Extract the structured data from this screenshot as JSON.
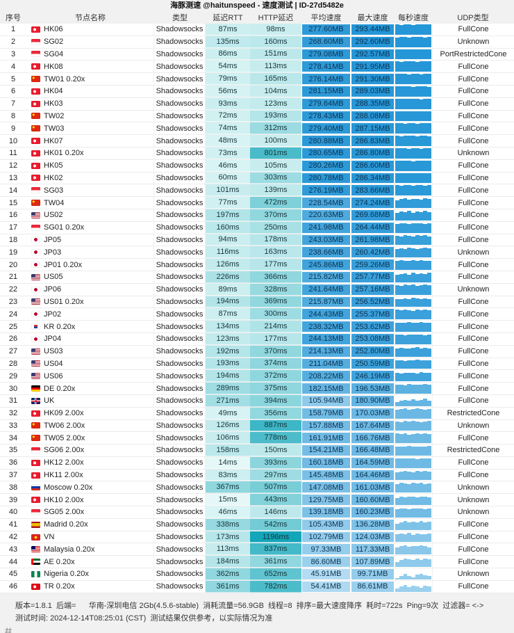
{
  "title": "海豚测速 @haitunspeed - 速度测试 | ID-27d5482e",
  "columns": [
    "序号",
    "节点名称",
    "类型",
    "延迟RTT",
    "HTTP延迟",
    "平均速度",
    "最大速度",
    "每秒速度",
    "UDP类型"
  ],
  "rows": [
    {
      "idx": "1",
      "flag": "hk",
      "name": "HK06",
      "type": "Shadowsocks",
      "rtt": "87ms",
      "http": "98ms",
      "avg": "277.60MB",
      "max": "293.44MB",
      "udp": "FullCone",
      "bars": [
        1,
        0.96,
        1,
        1,
        0.93,
        1,
        1,
        0.97,
        1
      ]
    },
    {
      "idx": "2",
      "flag": "sg",
      "name": "SG02",
      "type": "Shadowsocks",
      "rtt": "135ms",
      "http": "160ms",
      "avg": "268.60MB",
      "max": "292.60MB",
      "udp": "Unknown",
      "bars": [
        0.9,
        1,
        1,
        0.95,
        1,
        1,
        1,
        0.94,
        1
      ]
    },
    {
      "idx": "3",
      "flag": "sg",
      "name": "SG04",
      "type": "Shadowsocks",
      "rtt": "86ms",
      "http": "151ms",
      "avg": "279.08MB",
      "max": "292.57MB",
      "udp": "PortRestrictedCone",
      "bars": [
        1,
        1,
        0.94,
        1,
        1,
        0.96,
        1,
        1,
        0.95
      ]
    },
    {
      "idx": "4",
      "flag": "hk",
      "name": "HK08",
      "type": "Shadowsocks",
      "rtt": "54ms",
      "http": "113ms",
      "avg": "278.41MB",
      "max": "291.95MB",
      "udp": "FullCone",
      "bars": [
        1,
        0.95,
        1,
        1,
        1,
        0.93,
        1,
        1,
        1
      ]
    },
    {
      "idx": "5",
      "flag": "cn",
      "name": "TW01 0.20x",
      "type": "Shadowsocks",
      "rtt": "79ms",
      "http": "165ms",
      "avg": "276.14MB",
      "max": "291.30MB",
      "udp": "FullCone",
      "bars": [
        1,
        1,
        1,
        0.92,
        1,
        1,
        0.95,
        1,
        1
      ]
    },
    {
      "idx": "6",
      "flag": "hk",
      "name": "HK04",
      "type": "Shadowsocks",
      "rtt": "56ms",
      "http": "104ms",
      "avg": "281.15MB",
      "max": "289.03MB",
      "udp": "FullCone",
      "bars": [
        1,
        0.97,
        1,
        1,
        0.95,
        1,
        1,
        1,
        0.96
      ]
    },
    {
      "idx": "7",
      "flag": "hk",
      "name": "HK03",
      "type": "Shadowsocks",
      "rtt": "93ms",
      "http": "123ms",
      "avg": "279.64MB",
      "max": "288.35MB",
      "udp": "FullCone",
      "bars": [
        1,
        1,
        0.96,
        1,
        1,
        1,
        0.94,
        1,
        1
      ]
    },
    {
      "idx": "8",
      "flag": "cn",
      "name": "TW02",
      "type": "Shadowsocks",
      "rtt": "72ms",
      "http": "193ms",
      "avg": "278.43MB",
      "max": "288.08MB",
      "udp": "FullCone",
      "bars": [
        0.95,
        1,
        1,
        1,
        0.96,
        1,
        1,
        0.97,
        1
      ]
    },
    {
      "idx": "9",
      "flag": "cn",
      "name": "TW03",
      "type": "Shadowsocks",
      "rtt": "74ms",
      "http": "312ms",
      "avg": "279.40MB",
      "max": "287.15MB",
      "udp": "FullCone",
      "bars": [
        1,
        1,
        0.95,
        1,
        1,
        0.97,
        1,
        1,
        1
      ]
    },
    {
      "idx": "10",
      "flag": "hk",
      "name": "HK07",
      "type": "Shadowsocks",
      "rtt": "48ms",
      "http": "100ms",
      "avg": "280.88MB",
      "max": "286.83MB",
      "udp": "FullCone",
      "bars": [
        1,
        0.96,
        1,
        1,
        1,
        0.95,
        1,
        1,
        0.97
      ]
    },
    {
      "idx": "11",
      "flag": "hk",
      "name": "HK01 0.20x",
      "type": "Shadowsocks",
      "rtt": "73ms",
      "http": "801ms",
      "avg": "280.65MB",
      "max": "286.80MB",
      "udp": "Unknown",
      "bars": [
        1,
        1,
        1,
        0.94,
        1,
        1,
        0.96,
        1,
        1
      ]
    },
    {
      "idx": "12",
      "flag": "hk",
      "name": "HK05",
      "type": "Shadowsocks",
      "rtt": "46ms",
      "http": "105ms",
      "avg": "280.26MB",
      "max": "286.60MB",
      "udp": "FullCone",
      "bars": [
        0.97,
        1,
        1,
        1,
        0.95,
        1,
        1,
        1,
        0.96
      ]
    },
    {
      "idx": "13",
      "flag": "hk",
      "name": "HK02",
      "type": "Shadowsocks",
      "rtt": "60ms",
      "http": "303ms",
      "avg": "280.78MB",
      "max": "286.34MB",
      "udp": "FullCone",
      "bars": [
        1,
        1,
        0.96,
        1,
        1,
        1,
        0.95,
        1,
        1
      ]
    },
    {
      "idx": "14",
      "flag": "sg",
      "name": "SG03",
      "type": "Shadowsocks",
      "rtt": "101ms",
      "http": "139ms",
      "avg": "276.19MB",
      "max": "283.66MB",
      "udp": "FullCone",
      "bars": [
        1,
        0.95,
        1,
        1,
        0.97,
        1,
        1,
        0.96,
        1
      ]
    },
    {
      "idx": "15",
      "flag": "cn",
      "name": "TW04",
      "type": "Shadowsocks",
      "rtt": "77ms",
      "http": "472ms",
      "avg": "228.54MB",
      "max": "274.24MB",
      "udp": "FullCone",
      "bars": [
        0.75,
        0.85,
        0.95,
        0.8,
        0.9,
        0.85,
        0.8,
        0.95,
        0.85
      ]
    },
    {
      "idx": "16",
      "flag": "us",
      "name": "US02",
      "type": "Shadowsocks",
      "rtt": "197ms",
      "http": "370ms",
      "avg": "220.63MB",
      "max": "269.68MB",
      "udp": "FullCone",
      "bars": [
        0.7,
        0.85,
        0.8,
        0.9,
        0.75,
        0.85,
        0.8,
        0.9,
        0.8
      ]
    },
    {
      "idx": "17",
      "flag": "sg",
      "name": "SG01 0.20x",
      "type": "Shadowsocks",
      "rtt": "160ms",
      "http": "250ms",
      "avg": "241.98MB",
      "max": "264.44MB",
      "udp": "FullCone",
      "bars": [
        0.85,
        0.9,
        0.95,
        0.85,
        0.9,
        0.95,
        0.9,
        0.85,
        0.9
      ]
    },
    {
      "idx": "18",
      "flag": "jp",
      "name": "JP05",
      "type": "Shadowsocks",
      "rtt": "94ms",
      "http": "178ms",
      "avg": "243.03MB",
      "max": "261.98MB",
      "udp": "FullCone",
      "bars": [
        0.9,
        0.85,
        0.95,
        0.9,
        0.85,
        0.95,
        0.9,
        0.95,
        0.85
      ]
    },
    {
      "idx": "19",
      "flag": "jp",
      "name": "JP03",
      "type": "Shadowsocks",
      "rtt": "116ms",
      "http": "163ms",
      "avg": "238.66MB",
      "max": "260.42MB",
      "udp": "Unknown",
      "bars": [
        0.85,
        0.9,
        0.85,
        0.95,
        0.9,
        0.85,
        0.9,
        0.95,
        0.9
      ]
    },
    {
      "idx": "20",
      "flag": "jp",
      "name": "JP01 0.20x",
      "type": "Shadowsocks",
      "rtt": "126ms",
      "http": "177ms",
      "avg": "245.86MB",
      "max": "259.26MB",
      "udp": "FullCone",
      "bars": [
        0.9,
        0.95,
        0.9,
        0.85,
        0.95,
        0.9,
        0.95,
        0.9,
        0.85
      ]
    },
    {
      "idx": "21",
      "flag": "us",
      "name": "US05",
      "type": "Shadowsocks",
      "rtt": "226ms",
      "http": "366ms",
      "avg": "215.82MB",
      "max": "257.77MB",
      "udp": "FullCone",
      "bars": [
        0.75,
        0.8,
        0.85,
        0.75,
        0.9,
        0.8,
        0.85,
        0.8,
        0.9
      ]
    },
    {
      "idx": "22",
      "flag": "jp",
      "name": "JP06",
      "type": "Shadowsocks",
      "rtt": "89ms",
      "http": "328ms",
      "avg": "241.64MB",
      "max": "257.16MB",
      "udp": "Unknown",
      "bars": [
        0.9,
        0.85,
        0.95,
        0.9,
        0.95,
        0.85,
        0.9,
        0.95,
        0.9
      ]
    },
    {
      "idx": "23",
      "flag": "us",
      "name": "US01 0.20x",
      "type": "Shadowsocks",
      "rtt": "194ms",
      "http": "369ms",
      "avg": "215.87MB",
      "max": "256.52MB",
      "udp": "FullCone",
      "bars": [
        0.8,
        0.75,
        0.85,
        0.8,
        0.9,
        0.85,
        0.8,
        0.85,
        0.75
      ]
    },
    {
      "idx": "24",
      "flag": "jp",
      "name": "JP02",
      "type": "Shadowsocks",
      "rtt": "87ms",
      "http": "300ms",
      "avg": "244.43MB",
      "max": "255.37MB",
      "udp": "FullCone",
      "bars": [
        0.95,
        0.9,
        0.95,
        0.9,
        0.85,
        0.95,
        0.9,
        0.95,
        0.9
      ]
    },
    {
      "idx": "25",
      "flag": "kr",
      "name": "KR 0.20x",
      "type": "Shadowsocks",
      "rtt": "134ms",
      "http": "214ms",
      "avg": "238.32MB",
      "max": "253.62MB",
      "udp": "FullCone",
      "bars": [
        0.9,
        0.85,
        0.9,
        0.95,
        0.9,
        0.85,
        0.95,
        0.9,
        0.85
      ]
    },
    {
      "idx": "26",
      "flag": "jp",
      "name": "JP04",
      "type": "Shadowsocks",
      "rtt": "123ms",
      "http": "177ms",
      "avg": "244.13MB",
      "max": "253.08MB",
      "udp": "FullCone",
      "bars": [
        0.95,
        0.9,
        0.85,
        0.95,
        0.9,
        0.95,
        0.9,
        0.85,
        0.95
      ]
    },
    {
      "idx": "27",
      "flag": "us",
      "name": "US03",
      "type": "Shadowsocks",
      "rtt": "192ms",
      "http": "370ms",
      "avg": "214.13MB",
      "max": "252.80MB",
      "udp": "FullCone",
      "bars": [
        0.8,
        0.85,
        0.8,
        0.75,
        0.85,
        0.9,
        0.8,
        0.85,
        0.8
      ]
    },
    {
      "idx": "28",
      "flag": "us",
      "name": "US04",
      "type": "Shadowsocks",
      "rtt": "193ms",
      "http": "374ms",
      "avg": "211.04MB",
      "max": "250.59MB",
      "udp": "FullCone",
      "bars": [
        0.8,
        0.85,
        0.75,
        0.85,
        0.8,
        0.9,
        0.85,
        0.8,
        0.85
      ]
    },
    {
      "idx": "29",
      "flag": "us",
      "name": "US06",
      "type": "Shadowsocks",
      "rtt": "194ms",
      "http": "372ms",
      "avg": "208.22MB",
      "max": "246.19MB",
      "udp": "FullCone",
      "bars": [
        0.8,
        0.75,
        0.85,
        0.8,
        0.85,
        0.75,
        0.9,
        0.8,
        0.85
      ]
    },
    {
      "idx": "30",
      "flag": "de",
      "name": "DE 0.20x",
      "type": "Shadowsocks",
      "rtt": "289ms",
      "http": "375ms",
      "avg": "182.15MB",
      "max": "196.53MB",
      "udp": "FullCone",
      "bars": [
        0.85,
        0.9,
        0.8,
        0.95,
        0.85,
        0.9,
        0.85,
        0.95,
        0.9
      ]
    },
    {
      "idx": "31",
      "flag": "gb",
      "name": "UK",
      "type": "Shadowsocks",
      "rtt": "271ms",
      "http": "394ms",
      "avg": "105.94MB",
      "max": "180.90MB",
      "udp": "FullCone",
      "bars": [
        0.4,
        0.55,
        0.6,
        0.5,
        0.65,
        0.55,
        0.6,
        0.7,
        0.55
      ]
    },
    {
      "idx": "32",
      "flag": "hk",
      "name": "HK09 2.00x",
      "type": "Shadowsocks",
      "rtt": "49ms",
      "http": "356ms",
      "avg": "158.79MB",
      "max": "170.03MB",
      "udp": "RestrictedCone",
      "bars": [
        0.85,
        0.9,
        0.95,
        0.85,
        0.9,
        0.95,
        0.9,
        0.85,
        0.9
      ]
    },
    {
      "idx": "33",
      "flag": "cn",
      "name": "TW06 2.00x",
      "type": "Shadowsocks",
      "rtt": "126ms",
      "http": "887ms",
      "avg": "157.88MB",
      "max": "167.64MB",
      "udp": "Unknown",
      "bars": [
        0.9,
        0.85,
        0.95,
        0.9,
        0.95,
        0.9,
        0.85,
        0.9,
        0.95
      ]
    },
    {
      "idx": "34",
      "flag": "cn",
      "name": "TW05 2.00x",
      "type": "Shadowsocks",
      "rtt": "106ms",
      "http": "778ms",
      "avg": "161.91MB",
      "max": "166.76MB",
      "udp": "FullCone",
      "bars": [
        0.95,
        0.9,
        0.95,
        0.85,
        0.9,
        0.95,
        0.9,
        0.95,
        0.9
      ]
    },
    {
      "idx": "35",
      "flag": "sg",
      "name": "SG06 2.00x",
      "type": "Shadowsocks",
      "rtt": "158ms",
      "http": "150ms",
      "avg": "154.21MB",
      "max": "166.48MB",
      "udp": "RestrictedCone",
      "bars": [
        0.85,
        0.9,
        0.85,
        0.95,
        0.9,
        0.85,
        0.9,
        0.85,
        0.95
      ]
    },
    {
      "idx": "36",
      "flag": "hk",
      "name": "HK12 2.00x",
      "type": "Shadowsocks",
      "rtt": "14ms",
      "http": "393ms",
      "avg": "160.18MB",
      "max": "164.59MB",
      "udp": "FullCone",
      "bars": [
        0.95,
        0.9,
        0.95,
        0.9,
        0.95,
        0.85,
        0.95,
        0.9,
        0.95
      ]
    },
    {
      "idx": "37",
      "flag": "hk",
      "name": "HK11 2.00x",
      "type": "Shadowsocks",
      "rtt": "83ms",
      "http": "297ms",
      "avg": "145.48MB",
      "max": "164.46MB",
      "udp": "FullCone",
      "bars": [
        0.8,
        0.85,
        0.9,
        0.85,
        0.8,
        0.9,
        0.85,
        0.9,
        0.85
      ]
    },
    {
      "idx": "38",
      "flag": "ru",
      "name": "Moscow 0.20x",
      "type": "Shadowsocks",
      "rtt": "367ms",
      "http": "507ms",
      "avg": "147.08MB",
      "max": "161.03MB",
      "udp": "Unknown",
      "bars": [
        0.85,
        0.95,
        0.9,
        0.85,
        0.95,
        0.9,
        0.95,
        0.85,
        0.9
      ]
    },
    {
      "idx": "39",
      "flag": "hk",
      "name": "HK10 2.00x",
      "type": "Shadowsocks",
      "rtt": "15ms",
      "http": "443ms",
      "avg": "129.75MB",
      "max": "160.60MB",
      "udp": "Unknown",
      "bars": [
        0.7,
        0.8,
        0.75,
        0.85,
        0.8,
        0.75,
        0.85,
        0.8,
        0.75
      ]
    },
    {
      "idx": "40",
      "flag": "sg",
      "name": "SG05 2.00x",
      "type": "Shadowsocks",
      "rtt": "46ms",
      "http": "146ms",
      "avg": "139.18MB",
      "max": "160.23MB",
      "udp": "Unknown",
      "bars": [
        0.8,
        0.85,
        0.9,
        0.8,
        0.85,
        0.9,
        0.85,
        0.8,
        0.85
      ]
    },
    {
      "idx": "41",
      "flag": "es",
      "name": "Madrid 0.20x",
      "type": "Shadowsocks",
      "rtt": "338ms",
      "http": "542ms",
      "avg": "105.43MB",
      "max": "136.28MB",
      "udp": "FullCone",
      "bars": [
        0.6,
        0.75,
        0.85,
        0.7,
        0.8,
        0.75,
        0.85,
        0.7,
        0.8
      ]
    },
    {
      "idx": "42",
      "flag": "vn",
      "name": "VN",
      "type": "Shadowsocks",
      "rtt": "173ms",
      "http": "1196ms",
      "avg": "102.79MB",
      "max": "124.03MB",
      "udp": "FullCone",
      "bars": [
        0.75,
        0.85,
        0.8,
        0.9,
        0.7,
        0.85,
        0.8,
        0.75,
        0.85
      ]
    },
    {
      "idx": "43",
      "flag": "my",
      "name": "Malaysia 0.20x",
      "type": "Shadowsocks",
      "rtt": "113ms",
      "http": "837ms",
      "avg": "97.33MB",
      "max": "117.33MB",
      "udp": "FullCone",
      "bars": [
        0.7,
        0.8,
        0.9,
        0.75,
        0.85,
        0.8,
        0.9,
        0.8,
        0.7
      ]
    },
    {
      "idx": "44",
      "flag": "ae",
      "name": "AE 0.20x",
      "type": "Shadowsocks",
      "rtt": "184ms",
      "http": "361ms",
      "avg": "86.60MB",
      "max": "107.89MB",
      "udp": "FullCone",
      "bars": [
        0.5,
        0.7,
        0.85,
        0.75,
        0.65,
        0.8,
        0.7,
        0.85,
        0.75
      ]
    },
    {
      "idx": "45",
      "flag": "ng",
      "name": "Nigeria 0.20x",
      "type": "Shadowsocks",
      "rtt": "362ms",
      "http": "652ms",
      "avg": "45.91MB",
      "max": "99.71MB",
      "udp": "Unknown",
      "bars": [
        0.15,
        0.35,
        0.5,
        0.3,
        0.2,
        0.45,
        0.55,
        0.4,
        0.3
      ]
    },
    {
      "idx": "46",
      "flag": "tr",
      "name": "TR 0.20x",
      "type": "Shadowsocks",
      "rtt": "361ms",
      "http": "782ms",
      "avg": "54.41MB",
      "max": "86.61MB",
      "udp": "FullCone",
      "bars": [
        0.3,
        0.5,
        0.65,
        0.45,
        0.6,
        0.5,
        0.4,
        0.6,
        0.5
      ]
    }
  ],
  "footer": {
    "line1": "版本=1.8.1  后端=      华南-深圳电信 2Gb(4.5.6-stable)  消耗流量=56.9GB  线程=8  排序=最大速度降序  耗时=722s  Ping=9次  过滤器= <->",
    "line2": "测试时间: 2024-12-14T08:25:01 (CST)  测试结果仅供参考，以实际情况为准"
  }
}
